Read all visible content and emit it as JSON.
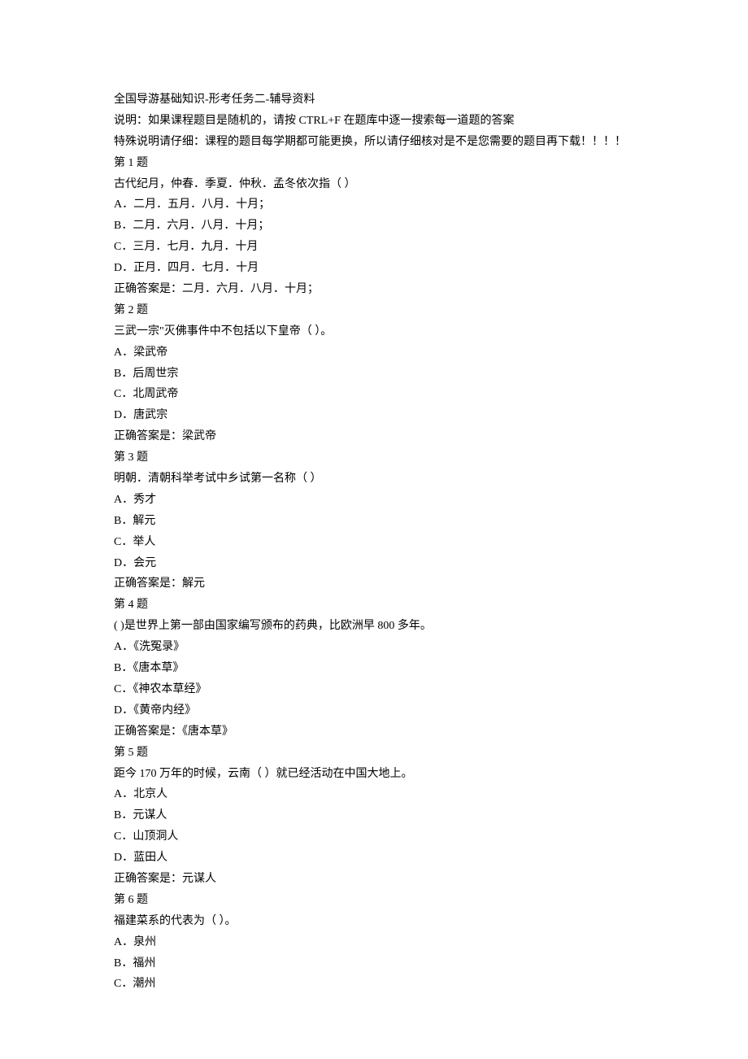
{
  "header": {
    "title": "全国导游基础知识-形考任务二-辅导资料",
    "instruction1": "说明：如果课程题目是随机的，请按 CTRL+F 在题库中逐一搜索每一道题的答案",
    "instruction2": "特殊说明请仔细：课程的题目每学期都可能更换，所以请仔细核对是不是您需要的题目再下载！！！！"
  },
  "questions": [
    {
      "number": "第 1 题",
      "text": "古代纪月，仲春．季夏．仲秋．孟冬依次指（ ）",
      "options": [
        "A．二月．五月．八月．十月；",
        "B．二月．六月．八月．十月；",
        "C．三月．七月．九月．十月",
        "D．正月．四月．七月．十月"
      ],
      "answer": "正确答案是：二月．六月．八月．十月；"
    },
    {
      "number": "第 2 题",
      "text": "三武一宗\"灭佛事件中不包括以下皇帝（ ）。",
      "options": [
        "A．梁武帝",
        "B．后周世宗",
        "C．北周武帝",
        "D．唐武宗"
      ],
      "answer": "正确答案是：梁武帝"
    },
    {
      "number": "第 3 题",
      "text": "明朝．清朝科举考试中乡试第一名称（ ）",
      "options": [
        "A．秀才",
        "B．解元",
        "C．举人",
        "D．会元"
      ],
      "answer": "正确答案是：解元"
    },
    {
      "number": "第 4 题",
      "text": "( )是世界上第一部由国家编写颁布的药典，比欧洲早 800 多年。",
      "options": [
        "A．《洗冤录》",
        "B．《唐本草》",
        "C．《神农本草经》",
        "D．《黄帝内经》"
      ],
      "answer": "正确答案是：《唐本草》"
    },
    {
      "number": "第 5 题",
      "text": "距今 170 万年的时候，云南（ ）就已经活动在中国大地上。",
      "options": [
        "A．北京人",
        "B．元谋人",
        "C．山顶洞人",
        "D．蓝田人"
      ],
      "answer": "正确答案是：元谋人"
    },
    {
      "number": "第 6 题",
      "text": "福建菜系的代表为（ ）。",
      "options": [
        "A．泉州",
        "B．福州",
        "C．潮州"
      ],
      "answer": ""
    }
  ]
}
